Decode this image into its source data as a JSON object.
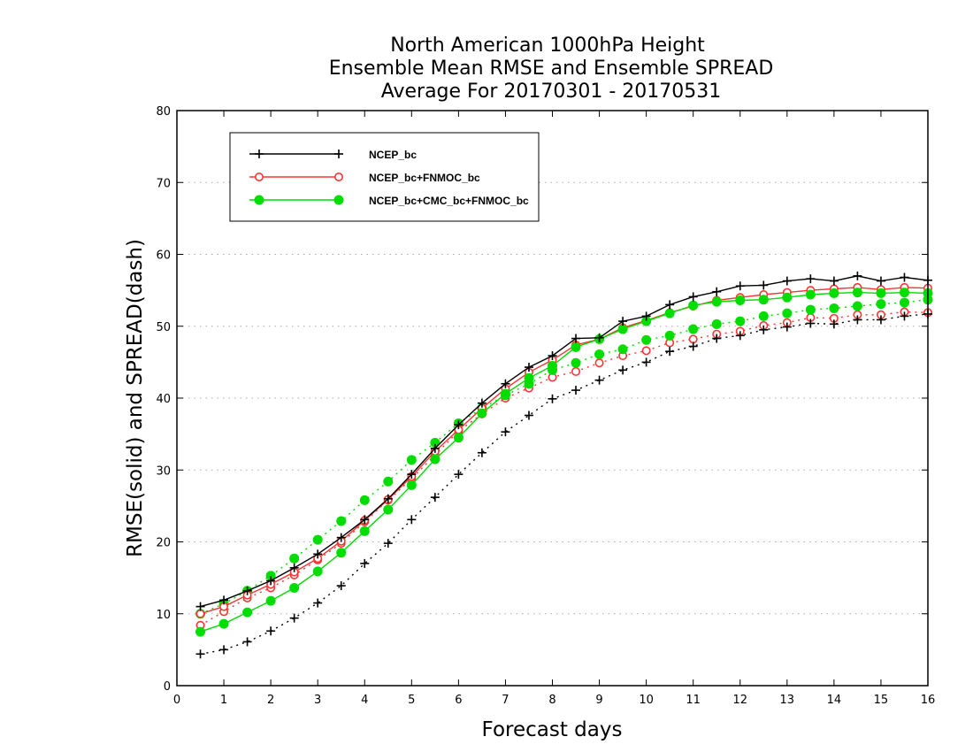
{
  "chart_data": {
    "type": "line",
    "title": [
      "North American 1000hPa Height",
      "Ensemble Mean RMSE and Ensemble SPREAD",
      "Average For 20170301 - 20170531"
    ],
    "xlabel": "Forecast days",
    "ylabel": "RMSE(solid) and SPREAD(dash)",
    "xlim": [
      0,
      16
    ],
    "ylim": [
      0,
      80
    ],
    "xticks": [
      "0",
      "1",
      "2",
      "3",
      "4",
      "5",
      "6",
      "7",
      "8",
      "9",
      "10",
      "11",
      "12",
      "13",
      "14",
      "15",
      "16"
    ],
    "yticks": [
      "0",
      "10",
      "20",
      "30",
      "40",
      "50",
      "60",
      "70",
      "80"
    ],
    "grid": "horizontal dotted",
    "legend_position": "top-left",
    "x": [
      0.5,
      1,
      1.5,
      2,
      2.5,
      3,
      3.5,
      4,
      4.5,
      5,
      5.5,
      6,
      6.5,
      7,
      7.5,
      8,
      8.5,
      9,
      9.5,
      10,
      10.5,
      11,
      11.5,
      12,
      12.5,
      13,
      13.5,
      14,
      14.5,
      15,
      15.5,
      16
    ],
    "series": [
      {
        "name": "NCEP_bc",
        "color": "#000000",
        "marker": "plus",
        "rmse": [
          11.0,
          11.9,
          13.2,
          14.6,
          16.4,
          18.3,
          20.6,
          23.1,
          26.0,
          29.4,
          33.0,
          36.3,
          39.3,
          42.0,
          44.3,
          45.9,
          48.3,
          48.4,
          50.7,
          51.4,
          53.0,
          54.1,
          54.8,
          55.6,
          55.7,
          56.3,
          56.6,
          56.3,
          57.0,
          56.3,
          56.8,
          56.4
        ],
        "spread": [
          4.4,
          5.0,
          6.1,
          7.6,
          9.4,
          11.5,
          13.9,
          17.0,
          19.8,
          23.1,
          26.2,
          29.4,
          32.4,
          35.3,
          37.6,
          39.9,
          41.1,
          42.5,
          43.9,
          45.0,
          46.5,
          47.2,
          48.3,
          48.7,
          49.5,
          49.9,
          50.4,
          50.3,
          50.9,
          50.9,
          51.4,
          51.7
        ]
      },
      {
        "name": "NCEP_bc+FNMOC_bc",
        "color": "#ff3333",
        "marker": "open-circle",
        "rmse": [
          10.0,
          11.0,
          12.6,
          14.1,
          15.8,
          17.7,
          20.1,
          23.0,
          25.9,
          29.1,
          32.6,
          35.6,
          38.6,
          41.3,
          43.6,
          45.3,
          47.4,
          48.2,
          49.8,
          50.8,
          51.9,
          52.8,
          53.6,
          54.0,
          54.4,
          54.7,
          55.0,
          55.2,
          55.4,
          55.1,
          55.4,
          55.3
        ],
        "spread": [
          8.4,
          10.3,
          12.2,
          13.6,
          15.4,
          17.5,
          19.8,
          22.8,
          25.8,
          28.8,
          32.1,
          35.4,
          37.8,
          40.0,
          41.4,
          42.9,
          43.7,
          44.9,
          45.9,
          46.6,
          47.7,
          48.2,
          48.9,
          49.3,
          50.1,
          50.5,
          51.2,
          51.1,
          51.6,
          51.6,
          52.0,
          51.9
        ]
      },
      {
        "name": "NCEP_bc+CMC_bc+FNMOC_bc",
        "color": "#00dd00",
        "marker": "filled-circle",
        "rmse": [
          7.5,
          8.6,
          10.2,
          11.8,
          13.6,
          15.9,
          18.5,
          21.5,
          24.5,
          27.9,
          31.5,
          34.5,
          37.9,
          40.6,
          42.8,
          44.5,
          47.1,
          48.2,
          49.6,
          50.7,
          51.8,
          52.9,
          53.4,
          53.6,
          53.7,
          54.0,
          54.4,
          54.6,
          54.7,
          54.6,
          54.7,
          54.6
        ],
        "spread": [
          10.0,
          11.4,
          13.2,
          15.3,
          17.7,
          20.3,
          22.9,
          25.8,
          28.4,
          31.4,
          33.8,
          36.5,
          38.6,
          40.4,
          42.0,
          43.9,
          44.9,
          46.1,
          46.8,
          48.1,
          48.7,
          49.6,
          50.3,
          50.7,
          51.4,
          51.8,
          52.3,
          52.5,
          52.8,
          53.1,
          53.3,
          53.7
        ]
      }
    ]
  }
}
